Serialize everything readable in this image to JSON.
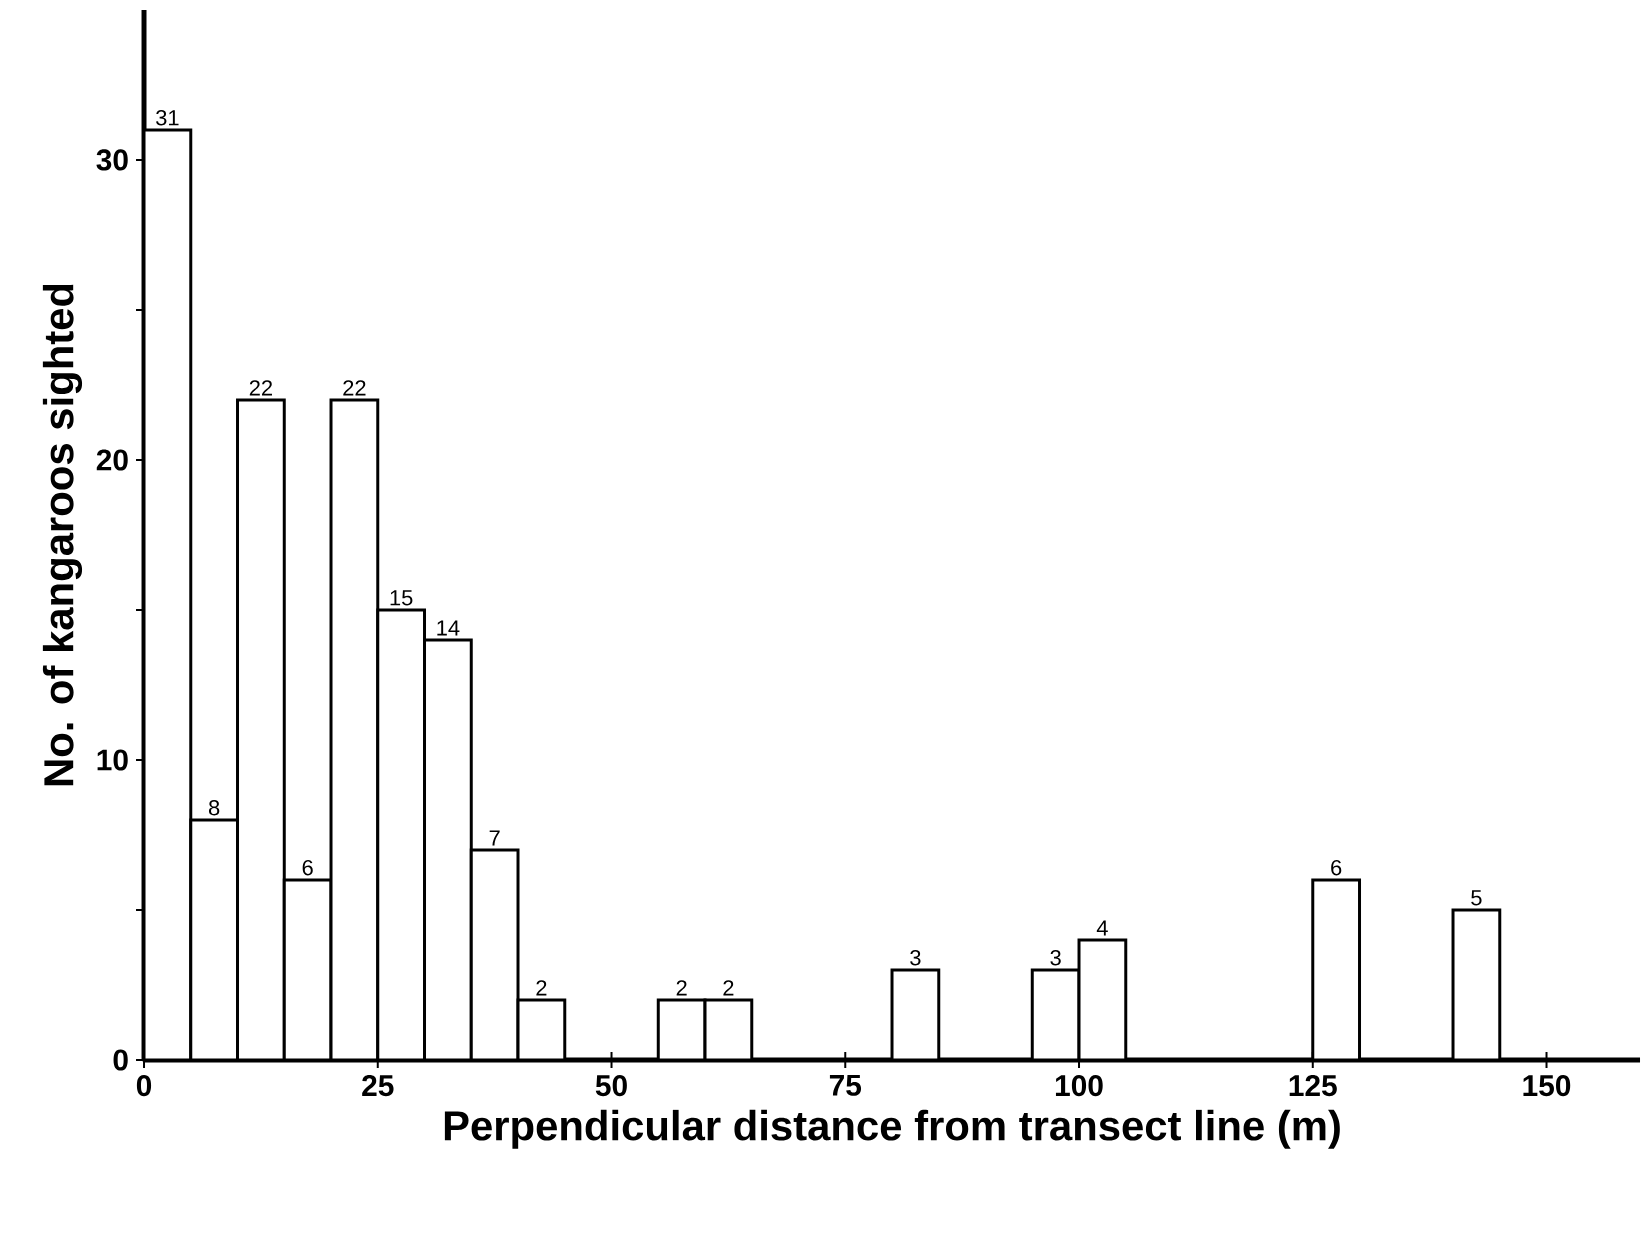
{
  "chart_data": {
    "type": "histogram",
    "xlabel": "Perpendicular distance from transect line (m)",
    "ylabel": "No. of kangaroos sighted",
    "bins": [
      0,
      5,
      10,
      15,
      20,
      25,
      30,
      35,
      40,
      45,
      50,
      55,
      60,
      65,
      70,
      75,
      80,
      85,
      90,
      95,
      100,
      105,
      110,
      115,
      120,
      125,
      130,
      135,
      140,
      145
    ],
    "values": [
      31,
      8,
      22,
      6,
      22,
      15,
      14,
      7,
      2,
      0,
      0,
      2,
      2,
      0,
      0,
      0,
      3,
      0,
      0,
      3,
      4,
      0,
      0,
      0,
      0,
      6,
      0,
      0,
      5
    ],
    "value_labels": [
      "31",
      "8",
      "22",
      "6",
      "22",
      "15",
      "14",
      "7",
      "2",
      null,
      null,
      "2",
      "2",
      null,
      null,
      null,
      "3",
      null,
      null,
      "3",
      "4",
      null,
      null,
      null,
      null,
      "6",
      null,
      null,
      "5"
    ],
    "color": "#ffffff",
    "xlim": [
      0,
      160
    ],
    "ylim": [
      0,
      35
    ],
    "xticks": [
      0,
      25,
      50,
      75,
      100,
      125,
      150
    ],
    "yticks": [
      0,
      {
        "value": 5,
        "label": null
      },
      10,
      {
        "value": 15,
        "label": null
      },
      20,
      {
        "value": 25,
        "label": null
      },
      30
    ],
    "grid": false
  }
}
